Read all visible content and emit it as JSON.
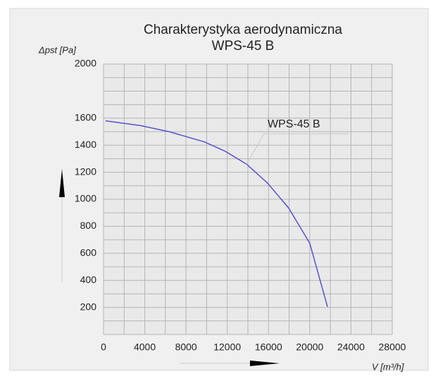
{
  "chart_data": {
    "type": "line",
    "title": "Charakterystyka aerodynamiczna",
    "subtitle": "WPS-45 B",
    "y_label": "Δpst [Pa]",
    "x_label": "V [m³/h]",
    "x": [
      200,
      3600,
      6350,
      9770,
      11800,
      13870,
      15900,
      17960,
      20000,
      21720
    ],
    "series": [
      {
        "name": "WPS-45 B",
        "color": "#5a50cc",
        "values": [
          1580,
          1545,
          1500,
          1425,
          1355,
          1260,
          1120,
          935,
          675,
          205
        ]
      }
    ],
    "xlim": [
      0,
      28000
    ],
    "xticks": [
      0,
      4000,
      8000,
      12000,
      16000,
      20000,
      24000,
      28000
    ],
    "xgrid": [
      0,
      2000,
      4000,
      6000,
      8000,
      10000,
      12000,
      14000,
      16000,
      18000,
      20000,
      22000,
      24000,
      26000,
      28000
    ],
    "ylim": [
      0,
      2000
    ],
    "yticks": [
      2000,
      1600,
      1400,
      1200,
      1000,
      800,
      600,
      400,
      200
    ],
    "ygrid": [
      0,
      100,
      200,
      300,
      400,
      500,
      600,
      700,
      800,
      900,
      1000,
      1100,
      1200,
      1300,
      1400,
      1500,
      1600,
      1700,
      1800,
      1900,
      2000
    ],
    "grid": true
  }
}
